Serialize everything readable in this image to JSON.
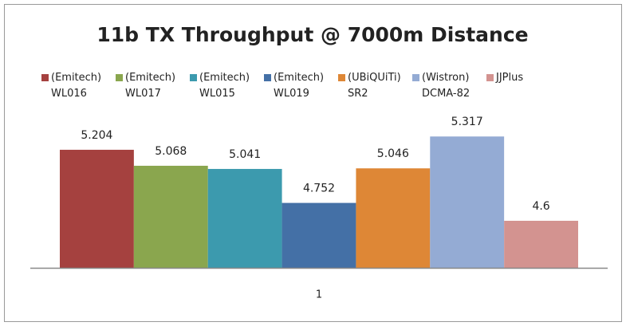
{
  "chart_data": {
    "type": "bar",
    "title": "11b TX Throughput @ 7000m Distance",
    "categories": [
      "1"
    ],
    "series": [
      {
        "name": "(Emitech) WL016",
        "color": "#a5413f",
        "values": [
          5.204
        ]
      },
      {
        "name": "(Emitech) WL017",
        "color": "#8aa64e",
        "values": [
          5.068
        ]
      },
      {
        "name": "(Emitech) WL015",
        "color": "#3c9aae",
        "values": [
          5.041
        ]
      },
      {
        "name": "(Emitech) WL019",
        "color": "#4470a6",
        "values": [
          4.752
        ]
      },
      {
        "name": "(UBiQUiTi) SR2",
        "color": "#de8736",
        "values": [
          5.046
        ]
      },
      {
        "name": "(Wistron) DCMA-82",
        "color": "#94abd4",
        "values": [
          5.317
        ]
      },
      {
        "name": "JJPlus",
        "color": "#d39390",
        "values": [
          4.6
        ]
      }
    ],
    "ylim": [
      4.2,
      5.4
    ],
    "legend": "top"
  }
}
